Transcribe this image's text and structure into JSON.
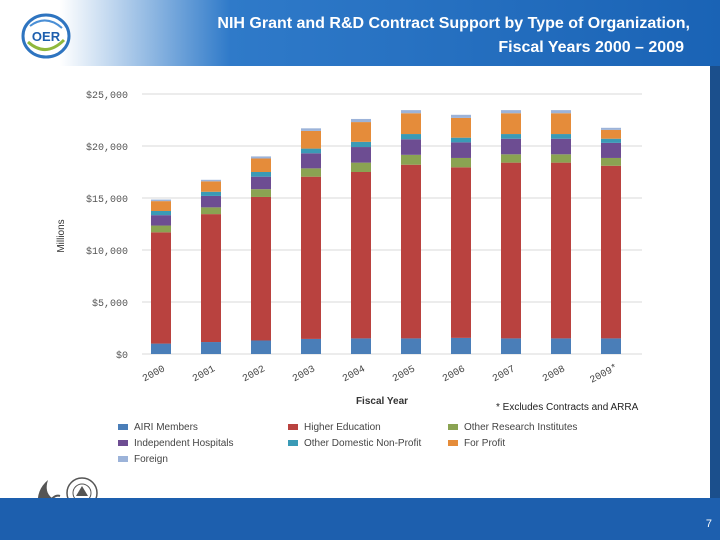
{
  "header": {
    "title_line1": "NIH Grant and R&D Contract Support by Type of Organization,",
    "title_line2": "Fiscal Years 2000 – 2009",
    "logo_text": "OER"
  },
  "footnote": "* Excludes Contracts and ARRA",
  "page_number": "7",
  "colors": {
    "AIRI Members": "#4a7eb8",
    "Higher Education": "#b9423f",
    "Other Research Institutes": "#8aa352",
    "Independent Hospitals": "#6d4d92",
    "Other Domestic Non-Profit": "#3a9ab6",
    "For Profit": "#e58c3a",
    "Foreign": "#9cb3d9"
  },
  "chart_data": {
    "type": "bar",
    "stacked": true,
    "categories": [
      "2000",
      "2001",
      "2002",
      "2003",
      "2004",
      "2005",
      "2006",
      "2007",
      "2008",
      "2009*"
    ],
    "xlabel": "Fiscal Year",
    "ylabel": "Millions",
    "ylim": [
      0,
      25000
    ],
    "yticks": [
      "$0",
      "$5,000",
      "$10,000",
      "$15,000",
      "$20,000",
      "$25,000"
    ],
    "grid": true,
    "legend_position": "bottom",
    "series": [
      {
        "name": "AIRI Members",
        "values": [
          1000,
          1150,
          1300,
          1450,
          1500,
          1500,
          1550,
          1500,
          1500,
          1500
        ]
      },
      {
        "name": "Higher Education",
        "values": [
          10700,
          12300,
          13800,
          15600,
          16000,
          16700,
          16400,
          16900,
          16900,
          16600
        ]
      },
      {
        "name": "Other Research Institutes",
        "values": [
          650,
          650,
          750,
          800,
          900,
          950,
          900,
          800,
          800,
          750
        ]
      },
      {
        "name": "Independent Hospitals",
        "values": [
          1000,
          1100,
          1200,
          1450,
          1500,
          1500,
          1500,
          1500,
          1500,
          1450
        ]
      },
      {
        "name": "Other Domestic Non-Profit",
        "values": [
          400,
          400,
          450,
          450,
          500,
          500,
          450,
          450,
          450,
          400
        ]
      },
      {
        "name": "For Profit",
        "values": [
          950,
          1000,
          1300,
          1700,
          1900,
          2000,
          1900,
          2000,
          2000,
          850
        ]
      },
      {
        "name": "Foreign",
        "values": [
          150,
          150,
          200,
          250,
          300,
          300,
          300,
          300,
          300,
          200
        ]
      }
    ]
  }
}
